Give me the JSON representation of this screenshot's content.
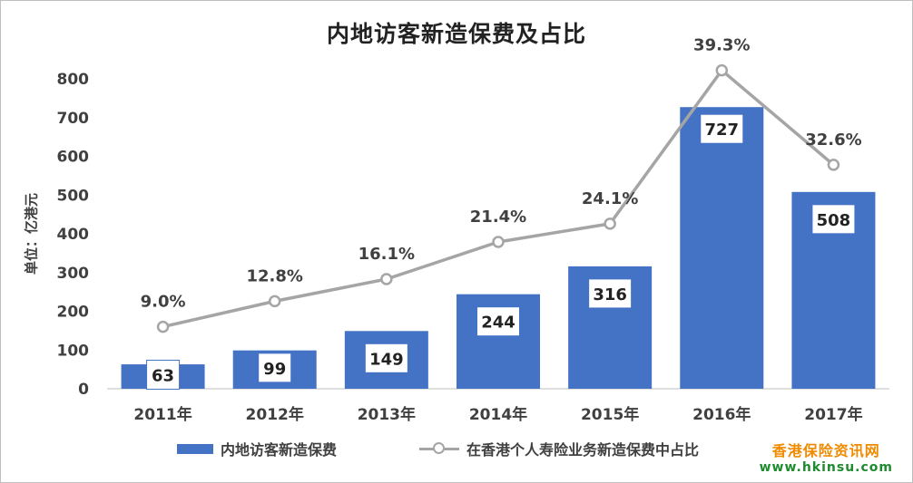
{
  "chart_data": {
    "type": "bar",
    "title": "内地访客新造保费及占比",
    "ylabel": "单位：亿港元",
    "xlabel": "",
    "ylim": [
      0,
      800
    ],
    "yticks": [
      0,
      100,
      200,
      300,
      400,
      500,
      600,
      700,
      800
    ],
    "categories": [
      "2011年",
      "2012年",
      "2013年",
      "2014年",
      "2015年",
      "2016年",
      "2017年"
    ],
    "series": [
      {
        "name": "内地访客新造保费",
        "kind": "bar",
        "color": "#4472c4",
        "values": [
          63,
          99,
          149,
          244,
          316,
          727,
          508
        ],
        "labels": [
          "63",
          "99",
          "149",
          "244",
          "316",
          "727",
          "508"
        ]
      },
      {
        "name": "在香港个人寿险业务新造保费中占比",
        "kind": "line",
        "color": "#a5a5a5",
        "percent_values": [
          9.0,
          12.8,
          16.1,
          21.4,
          24.1,
          39.3,
          32.6
        ],
        "labels": [
          "9.0%",
          "12.8%",
          "16.1%",
          "21.4%",
          "24.1%",
          "39.3%",
          "32.6%"
        ],
        "plot_values": [
          160,
          226,
          283,
          379,
          426,
          822,
          578
        ]
      }
    ],
    "legend_position": "bottom"
  },
  "watermark": {
    "name": "香港保险资讯网",
    "url": "www.hkinsu.com",
    "name_color": "#f08a00",
    "url_color": "#1e8b2e"
  }
}
